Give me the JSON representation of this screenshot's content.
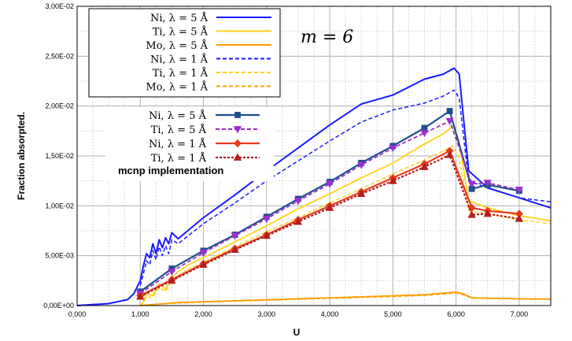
{
  "chart_data": {
    "type": "line",
    "xlabel": "U",
    "ylabel": "Fraction absorpted.",
    "xlim": [
      0,
      7.5
    ],
    "ylim": [
      0,
      0.03
    ],
    "x_ticks": [
      "0,000",
      "1,000",
      "2,000",
      "3,000",
      "4,000",
      "5,000",
      "6,000",
      "7,000"
    ],
    "x_tick_values": [
      0,
      1,
      2,
      3,
      4,
      5,
      6,
      7
    ],
    "y_ticks": [
      "0,00E+00",
      "5,00E-03",
      "1,00E-02",
      "1,50E-02",
      "2,00E-02",
      "2,50E-02",
      "3,00E-02"
    ],
    "y_tick_values": [
      0,
      0.005,
      0.01,
      0.015,
      0.02,
      0.025,
      0.03
    ],
    "annotation": "m = 6",
    "legend1": [
      {
        "name": "Ni, λ = 5 Å",
        "color": "#1a1aff",
        "dash": "solid"
      },
      {
        "name": "Ti, λ = 5 Å",
        "color": "#ffd21a",
        "dash": "solid"
      },
      {
        "name": "Mo, λ = 5 Å",
        "color": "#ff9f00",
        "dash": "solid"
      },
      {
        "name": "Ni, λ = 1 Å",
        "color": "#1a1aff",
        "dash": "dashed"
      },
      {
        "name": "Ti, λ = 1 Å",
        "color": "#ffd21a",
        "dash": "dashed"
      },
      {
        "name": "Mo, λ = 1 Å",
        "color": "#ff9f00",
        "dash": "dashed"
      }
    ],
    "legend2": [
      {
        "name": "Ni, λ = 5 Å",
        "color": "#1f4e8c",
        "dash": "solid",
        "marker": "square"
      },
      {
        "name": "Ti, λ = 5 Å",
        "color": "#9b30d0",
        "dash": "dashed",
        "marker": "tri-down"
      },
      {
        "name": "Ni, λ = 1 Å",
        "color": "#e63c1e",
        "dash": "solid",
        "marker": "diamond"
      },
      {
        "name": "Ti, λ = 1 Å",
        "color": "#b41e1e",
        "dash": "dotted",
        "marker": "tri-up"
      }
    ],
    "legend2_title": "mcnp implementation",
    "series": [
      {
        "id": "ni5",
        "color": "#1a1aff",
        "dash": "solid",
        "width": 2,
        "x": [
          0,
          0.5,
          0.8,
          0.9,
          1.0,
          1.05,
          1.1,
          1.15,
          1.2,
          1.25,
          1.3,
          1.35,
          1.4,
          1.45,
          1.5,
          1.6,
          2.0,
          2.5,
          3.0,
          3.5,
          4.0,
          4.5,
          5.0,
          5.5,
          5.8,
          5.97,
          6.05,
          6.2,
          6.5,
          7.0,
          7.5
        ],
        "y": [
          0,
          0.0002,
          0.0006,
          0.0012,
          0.0025,
          0.004,
          0.0052,
          0.0048,
          0.0062,
          0.0052,
          0.0066,
          0.0058,
          0.0068,
          0.0062,
          0.0073,
          0.0067,
          0.0088,
          0.0111,
          0.0135,
          0.0158,
          0.0181,
          0.0202,
          0.0211,
          0.0227,
          0.0232,
          0.0238,
          0.0232,
          0.0135,
          0.0118,
          0.0108,
          0.0098
        ]
      },
      {
        "id": "ni1",
        "color": "#1a1aff",
        "dash": "dashed",
        "width": 1.5,
        "x": [
          1.0,
          1.05,
          1.1,
          1.15,
          1.2,
          1.25,
          1.3,
          1.35,
          1.4,
          1.45,
          1.5,
          1.6,
          2.0,
          2.5,
          3.0,
          3.5,
          4.0,
          4.5,
          5.0,
          5.5,
          5.8,
          5.97,
          6.05,
          6.2,
          6.5,
          7.0,
          7.5
        ],
        "y": [
          0.002,
          0.0032,
          0.0045,
          0.0041,
          0.0055,
          0.0046,
          0.0059,
          0.005,
          0.006,
          0.0052,
          0.0066,
          0.0062,
          0.0082,
          0.0103,
          0.0125,
          0.0145,
          0.0165,
          0.0184,
          0.0196,
          0.0203,
          0.021,
          0.0216,
          0.0208,
          0.0125,
          0.0118,
          0.0108,
          0.0104
        ]
      },
      {
        "id": "ti5",
        "color": "#ffd21a",
        "dash": "solid",
        "width": 1.8,
        "x": [
          1.0,
          1.05,
          1.1,
          1.2,
          1.3,
          1.4,
          1.5,
          1.6,
          1.8,
          2.0,
          2.5,
          3.0,
          3.5,
          4.0,
          4.5,
          5.0,
          5.5,
          5.8,
          5.95,
          6.05,
          6.2,
          6.5,
          7.0,
          7.5
        ],
        "y": [
          0,
          0.0004,
          0.0012,
          0.001,
          0.0022,
          0.0016,
          0.0028,
          0.0034,
          0.0042,
          0.0048,
          0.0064,
          0.008,
          0.0097,
          0.0112,
          0.0128,
          0.0143,
          0.0162,
          0.0172,
          0.018,
          0.0165,
          0.0105,
          0.0098,
          0.009,
          0.0085
        ]
      },
      {
        "id": "ti1",
        "color": "#ffd21a",
        "dash": "dashed",
        "width": 1.5,
        "x": [
          1.0,
          1.05,
          1.1,
          1.2,
          1.3,
          1.4,
          1.5,
          1.6,
          1.8,
          2.0,
          2.5,
          3.0,
          3.5,
          4.0,
          4.5,
          5.0,
          5.5,
          5.8,
          5.95,
          6.05,
          6.2,
          6.5,
          7.0,
          7.5
        ],
        "y": [
          0,
          0.0003,
          0.0009,
          0.0008,
          0.0018,
          0.0014,
          0.0025,
          0.003,
          0.0038,
          0.0043,
          0.0059,
          0.0074,
          0.0088,
          0.0103,
          0.0117,
          0.0132,
          0.0146,
          0.0155,
          0.016,
          0.0148,
          0.0095,
          0.0092,
          0.0086,
          0.0082
        ]
      },
      {
        "id": "mo5",
        "color": "#ff9f00",
        "dash": "solid",
        "width": 1.8,
        "x": [
          1.0,
          1.2,
          1.4,
          1.6,
          2.0,
          3.0,
          4.0,
          5.0,
          5.5,
          5.9,
          6.0,
          6.1,
          6.25,
          6.5,
          7.0,
          7.5
        ],
        "y": [
          0,
          0.0001,
          0.0002,
          0.0003,
          0.00038,
          0.00058,
          0.00078,
          0.00098,
          0.00108,
          0.0013,
          0.00135,
          0.0012,
          0.00078,
          0.00074,
          0.00068,
          0.00065
        ]
      },
      {
        "id": "mo1",
        "color": "#ff9f00",
        "dash": "dashed",
        "width": 1.2,
        "x": [
          1.0,
          1.4,
          2.0,
          3.0,
          4.0,
          5.0,
          5.5,
          5.9,
          6.0,
          6.1,
          6.25,
          6.5,
          7.0,
          7.5
        ],
        "y": [
          0,
          0.00018,
          0.00034,
          0.00053,
          0.00072,
          0.0009,
          0.001,
          0.0012,
          0.00125,
          0.0011,
          0.00074,
          0.0007,
          0.00064,
          0.00062
        ]
      },
      {
        "id": "mcni5",
        "color": "#1f4e8c",
        "dash": "solid",
        "width": 2.2,
        "marker": "square",
        "x": [
          1.0,
          1.5,
          2.0,
          2.5,
          3.0,
          3.5,
          4.0,
          4.5,
          5.0,
          5.5,
          5.9,
          6.25,
          6.5,
          7.0
        ],
        "y": [
          0.0014,
          0.0037,
          0.0055,
          0.0071,
          0.0089,
          0.0107,
          0.0124,
          0.0143,
          0.016,
          0.0178,
          0.0195,
          0.0117,
          0.0121,
          0.0115
        ]
      },
      {
        "id": "mcti5",
        "color": "#9b30d0",
        "dash": "dashed",
        "width": 1.8,
        "marker": "tri-down",
        "x": [
          1.0,
          1.5,
          2.0,
          2.5,
          3.0,
          3.5,
          4.0,
          4.5,
          5.0,
          5.5,
          5.9,
          6.25,
          6.5,
          7.0
        ],
        "y": [
          0.0012,
          0.0034,
          0.0053,
          0.007,
          0.0087,
          0.0105,
          0.0122,
          0.0141,
          0.0158,
          0.0173,
          0.0185,
          0.0122,
          0.0123,
          0.0116
        ]
      },
      {
        "id": "mcni1",
        "color": "#e63c1e",
        "dash": "solid",
        "width": 2.2,
        "marker": "diamond",
        "x": [
          1.0,
          1.5,
          2.0,
          2.5,
          3.0,
          3.5,
          4.0,
          4.5,
          5.0,
          5.5,
          5.9,
          6.25,
          6.5,
          7.0
        ],
        "y": [
          0.001,
          0.0026,
          0.0042,
          0.0057,
          0.0071,
          0.0086,
          0.01,
          0.0114,
          0.0128,
          0.0142,
          0.0155,
          0.0098,
          0.0095,
          0.0092
        ]
      },
      {
        "id": "mcti1",
        "color": "#b41e1e",
        "dash": "dotted",
        "width": 2.2,
        "marker": "tri-up",
        "x": [
          1.0,
          1.5,
          2.0,
          2.5,
          3.0,
          3.5,
          4.0,
          4.5,
          5.0,
          5.5,
          5.9,
          6.25,
          6.5,
          7.0
        ],
        "y": [
          0.0009,
          0.0025,
          0.0041,
          0.0056,
          0.007,
          0.0084,
          0.0098,
          0.0112,
          0.0125,
          0.0139,
          0.0151,
          0.0091,
          0.0092,
          0.0087
        ]
      }
    ]
  }
}
